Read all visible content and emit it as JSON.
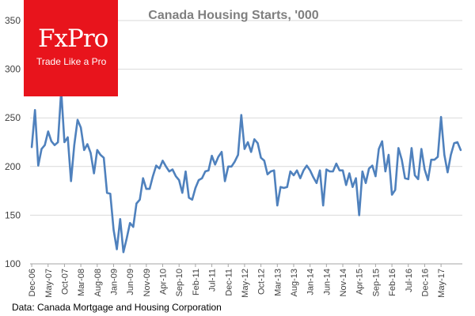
{
  "logo": {
    "brand": "FxPro",
    "tagline": "Trade Like a Pro"
  },
  "source_note": "Data: Canada Mortgage and Housing Corporation",
  "colors": {
    "line": "#4f81bd",
    "grid": "#d9d9d9",
    "axis": "#a6a6a6",
    "title": "#7f7f7f",
    "logo_bg": "#e8141c"
  },
  "chart_data": {
    "type": "line",
    "title": "Canada Housing Starts, '000",
    "xlabel": "",
    "ylabel": "",
    "ylim": [
      100,
      350
    ],
    "yticks": [
      100,
      150,
      200,
      250,
      300,
      350
    ],
    "grid": true,
    "legend": "none",
    "x_tick_labels": [
      {
        "label": "Dec-06",
        "index": 0
      },
      {
        "label": "May-07",
        "index": 5
      },
      {
        "label": "Oct-07",
        "index": 10
      },
      {
        "label": "Mar-08",
        "index": 15
      },
      {
        "label": "Aug-08",
        "index": 20
      },
      {
        "label": "Jan-09",
        "index": 25
      },
      {
        "label": "Jun-09",
        "index": 30
      },
      {
        "label": "Nov-09",
        "index": 35
      },
      {
        "label": "Apr-10",
        "index": 40
      },
      {
        "label": "Sep-10",
        "index": 45
      },
      {
        "label": "Feb-11",
        "index": 50
      },
      {
        "label": "Jul-11",
        "index": 55
      },
      {
        "label": "Dec-11",
        "index": 60
      },
      {
        "label": "May-12",
        "index": 65
      },
      {
        "label": "Oct-12",
        "index": 70
      },
      {
        "label": "Mar-13",
        "index": 75
      },
      {
        "label": "Aug-13",
        "index": 80
      },
      {
        "label": "Jan-14",
        "index": 85
      },
      {
        "label": "Jun-14",
        "index": 90
      },
      {
        "label": "Nov-14",
        "index": 95
      },
      {
        "label": "Apr-15",
        "index": 100
      },
      {
        "label": "Sep-15",
        "index": 105
      },
      {
        "label": "Feb-16",
        "index": 110
      },
      {
        "label": "Jul-16",
        "index": 115
      },
      {
        "label": "Dec-16",
        "index": 120
      },
      {
        "label": "May-17",
        "index": 125
      }
    ],
    "series": [
      {
        "name": "Housing starts ('000)",
        "values": [
          220,
          258,
          201,
          218,
          222,
          236,
          226,
          222,
          225,
          278,
          225,
          230,
          185,
          222,
          248,
          240,
          217,
          223,
          214,
          193,
          217,
          212,
          209,
          173,
          172,
          135,
          115,
          146,
          112,
          126,
          142,
          138,
          162,
          166,
          188,
          177,
          177,
          190,
          201,
          198,
          206,
          200,
          195,
          197,
          190,
          186,
          173,
          195,
          168,
          166,
          178,
          186,
          188,
          195,
          196,
          211,
          202,
          210,
          215,
          185,
          200,
          200,
          205,
          212,
          253,
          218,
          225,
          215,
          228,
          224,
          209,
          206,
          192,
          195,
          196,
          160,
          179,
          178,
          179,
          195,
          191,
          196,
          188,
          196,
          201,
          196,
          189,
          183,
          196,
          160,
          197,
          195,
          195,
          203,
          196,
          196,
          181,
          193,
          179,
          188,
          150,
          195,
          183,
          198,
          201,
          190,
          218,
          226,
          195,
          212,
          171,
          176,
          219,
          207,
          188,
          187,
          219,
          191,
          187,
          218,
          197,
          186,
          207,
          207,
          210,
          251,
          212,
          194,
          212,
          224,
          225,
          217
        ]
      }
    ]
  }
}
